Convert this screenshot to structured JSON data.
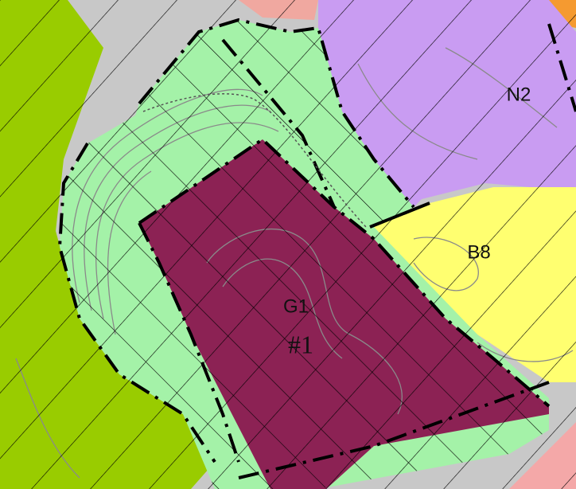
{
  "labels": [
    "N2",
    "B8",
    "G1",
    "#1"
  ]
}
